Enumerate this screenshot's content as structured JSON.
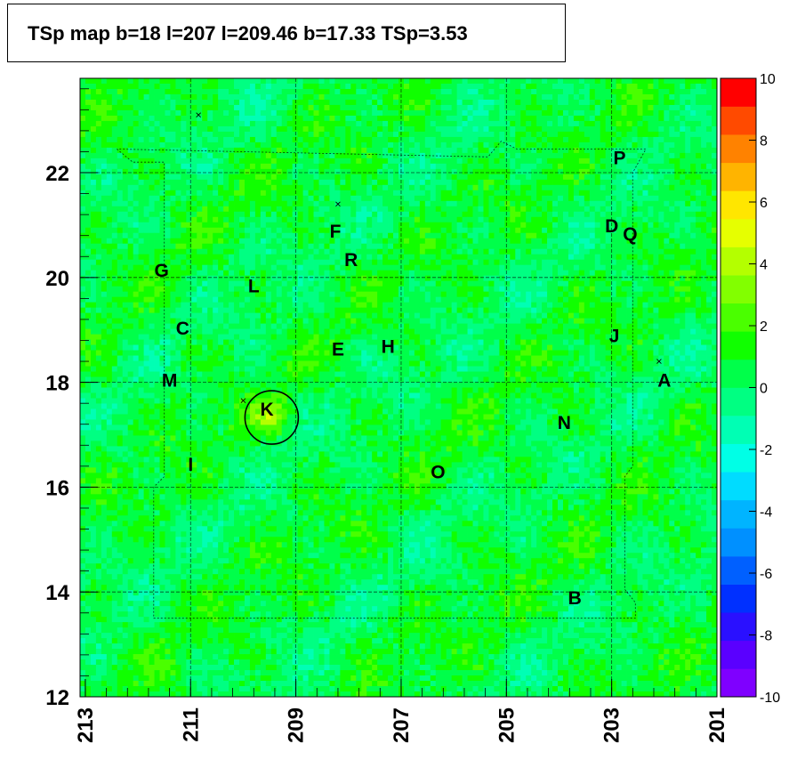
{
  "title": "TSp map b=18 l=207 l=209.46 b=17.33 TSp=3.53",
  "chart_data": {
    "type": "heatmap",
    "title": "TSp map b=18 l=207 l=209.46 b=17.33 TSp=3.53",
    "xlabel": "",
    "ylabel": "",
    "xlim": [
      213.1,
      201.0
    ],
    "ylim": [
      12.0,
      23.8
    ],
    "x_ticks": [
      "213",
      "211",
      "209",
      "207",
      "205",
      "203",
      "201"
    ],
    "y_ticks": [
      "12",
      "14",
      "16",
      "18",
      "20",
      "22"
    ],
    "zlim": [
      -10,
      10
    ],
    "z_ticks": [
      "-10",
      "-8",
      "-6",
      "-4",
      "-2",
      "0",
      "2",
      "4",
      "6",
      "8",
      "10"
    ],
    "palette": [
      "#7f00ff",
      "#5a00ff",
      "#2a10ff",
      "#0030ff",
      "#0060ff",
      "#0090ff",
      "#00b4ff",
      "#00dcff",
      "#00ffe6",
      "#00ffb4",
      "#00ff82",
      "#00ff4a",
      "#10ff00",
      "#4aff00",
      "#82ff00",
      "#b4ff00",
      "#e6ff00",
      "#ffe600",
      "#ffb400",
      "#ff8200",
      "#ff4a00",
      "#ff0000"
    ],
    "background_value": 0.5,
    "hotspot": {
      "l": 209.46,
      "b": 17.33,
      "ts": 3.53
    },
    "sources": [
      {
        "label": "P",
        "l": 202.85,
        "b": 22.3
      },
      {
        "label": "D",
        "l": 203.0,
        "b": 21.0
      },
      {
        "label": "Q",
        "l": 202.65,
        "b": 20.85
      },
      {
        "label": "F",
        "l": 208.25,
        "b": 20.9
      },
      {
        "label": "R",
        "l": 207.95,
        "b": 20.35
      },
      {
        "label": "G",
        "l": 211.55,
        "b": 20.15
      },
      {
        "label": "L",
        "l": 209.8,
        "b": 19.85
      },
      {
        "label": "C",
        "l": 211.15,
        "b": 19.05
      },
      {
        "label": "J",
        "l": 202.95,
        "b": 18.9
      },
      {
        "label": "E",
        "l": 208.2,
        "b": 18.65
      },
      {
        "label": "H",
        "l": 207.25,
        "b": 18.7
      },
      {
        "label": "A",
        "l": 202.0,
        "b": 18.05
      },
      {
        "label": "M",
        "l": 211.4,
        "b": 18.05
      },
      {
        "label": "K",
        "l": 209.55,
        "b": 17.5
      },
      {
        "label": "N",
        "l": 203.9,
        "b": 17.25
      },
      {
        "label": "I",
        "l": 211.0,
        "b": 16.45
      },
      {
        "label": "O",
        "l": 206.3,
        "b": 16.3
      },
      {
        "label": "B",
        "l": 203.7,
        "b": 13.9
      }
    ],
    "markers": [
      {
        "l": 210.85,
        "b": 23.1
      },
      {
        "l": 208.2,
        "b": 21.4
      },
      {
        "l": 210.0,
        "b": 17.65
      },
      {
        "l": 202.1,
        "b": 18.4
      }
    ]
  }
}
